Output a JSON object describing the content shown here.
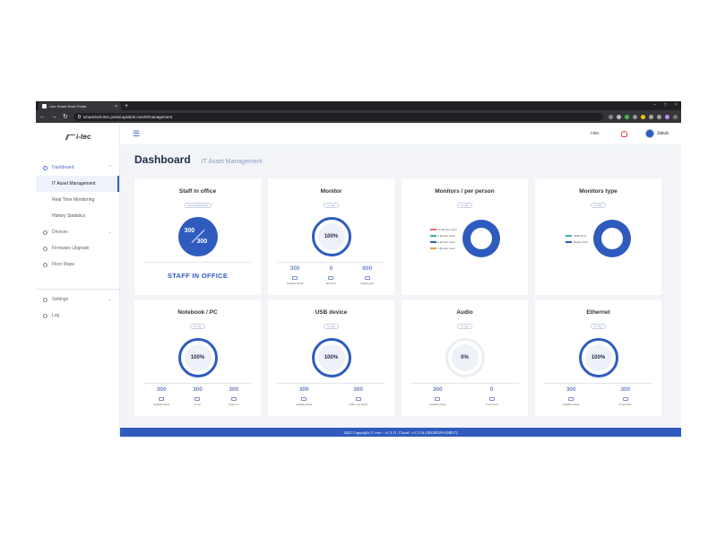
{
  "browser": {
    "tab_title": "i-tec Smart Dock Portal",
    "url": "smartdock-itec.portal.apiolink.com/#/management"
  },
  "sidebar": {
    "brand": "i-tec",
    "items": [
      {
        "label": "Dashboard",
        "icon": "dashboard-icon"
      },
      {
        "label": "IT Asset Management"
      },
      {
        "label": "Real Time Monitoring"
      },
      {
        "label": "History Statistics"
      },
      {
        "label": "Devices",
        "icon": "devices-icon"
      },
      {
        "label": "Firmware Upgrade",
        "icon": "firmware-icon"
      },
      {
        "label": "Floor Maps",
        "icon": "map-pin-icon"
      }
    ],
    "bottom": [
      {
        "label": "Settings",
        "icon": "gear-icon"
      },
      {
        "label": "Log",
        "icon": "log-icon"
      }
    ]
  },
  "topbar": {
    "brand": "i-tec",
    "user": "Jakub"
  },
  "header": {
    "title": "Dashboard",
    "subtitle": "IT Asset Management"
  },
  "cards": {
    "staff": {
      "title": "Staff in office",
      "badge": "Connected Docks",
      "value": "300",
      "total": "300",
      "footer": "STAFF IN OFFICE"
    },
    "monitor": {
      "title": "Monitor",
      "badge": "In Use",
      "percent": "100%",
      "stats": [
        {
          "value": "300",
          "label": "Available Docks"
        },
        {
          "value": "0",
          "label": "Idle Ports"
        },
        {
          "value": "600",
          "label": "Display ports"
        }
      ]
    },
    "per_person": {
      "title": "Monitors / per person",
      "badge": "In Use",
      "legend": [
        "No Monitor Used",
        "1 Monitor Used",
        "2 Monitor Used",
        "3 Monitor Used"
      ]
    },
    "type": {
      "title": "Monitors type",
      "badge": "In Use",
      "legend": [
        "HDMI Ports",
        "Display Ports"
      ]
    },
    "notebook": {
      "title": "Notebook / PC",
      "badge": "In Use",
      "percent": "100%",
      "stats": [
        {
          "value": "300",
          "label": "Available Docks"
        },
        {
          "value": "300",
          "label": "In use"
        },
        {
          "value": "300",
          "label": "Power on"
        }
      ]
    },
    "usb": {
      "title": "USB device",
      "badge": "In Use",
      "percent": "100%",
      "stats": [
        {
          "value": "300",
          "label": "Available Docks"
        },
        {
          "value": "300",
          "label": "USB in use Docks"
        }
      ]
    },
    "audio": {
      "title": "Audio",
      "badge": "In Use",
      "percent": "0%",
      "stats": [
        {
          "value": "300",
          "label": "Available Docks"
        },
        {
          "value": "0",
          "label": "In use Ports"
        }
      ]
    },
    "ethernet": {
      "title": "Ethernet",
      "badge": "In Use",
      "percent": "100%",
      "stats": [
        {
          "value": "300",
          "label": "Available Docks"
        },
        {
          "value": "300",
          "label": "In use Ports"
        }
      ]
    }
  },
  "footer": "2022 Copyright © i-tec - v1.5.11, Cloud - v1.5.14 (20220520-024857)",
  "colors": {
    "accent": "#2f5bbf",
    "legend_red": "#e0706a",
    "legend_teal": "#3db1a6",
    "legend_blue": "#2f5bbf",
    "legend_orange": "#e9a04c"
  }
}
